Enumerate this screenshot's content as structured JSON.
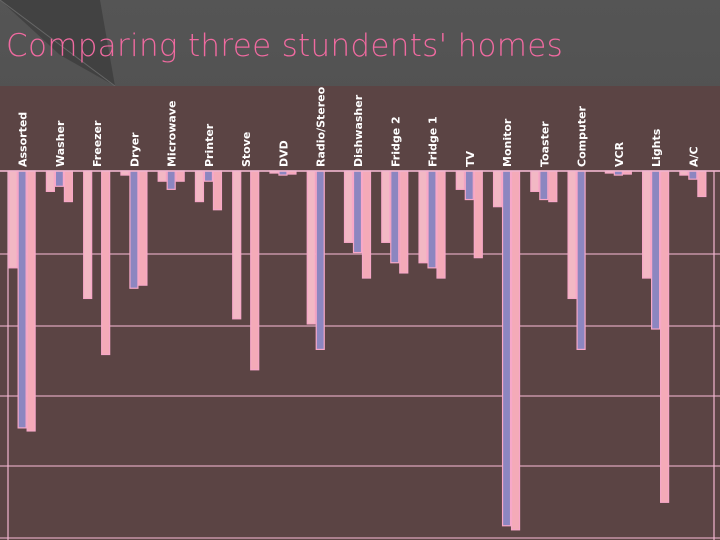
{
  "slide": {
    "title": "Comparing three stundents' homes"
  },
  "colors": {
    "background": "#4a4a4a",
    "plot_bg": "#5b4444",
    "title": "#f06aa0",
    "series_a": "#f2b8c4",
    "series_b": "#8c86c0",
    "series_c": "#f4aab8",
    "outline": "#f7a8c8",
    "gridline": "#f2b6d0",
    "label": "#ffffff"
  },
  "chart_data": {
    "type": "bar",
    "title": "Comparing three stundents' homes",
    "categories": [
      "Assorted",
      "Washer",
      "Freezer",
      "Dryer",
      "Microwave",
      "Printer",
      "Stove",
      "DVD",
      "Radio/Stereo",
      "Dishwasher",
      "Fridge 2",
      "Fridge 1",
      "TV",
      "Monitor",
      "Toaster",
      "Computer",
      "VCR",
      "Lights",
      "A/C"
    ],
    "series": [
      {
        "values": [
          95,
          20,
          125,
          4,
          10,
          30,
          145,
          2,
          150,
          70,
          70,
          90,
          18,
          35,
          20,
          125,
          2,
          105,
          4
        ]
      },
      {
        "values": [
          252,
          15,
          0,
          115,
          18,
          10,
          0,
          4,
          175,
          80,
          90,
          95,
          28,
          348,
          28,
          175,
          4,
          155,
          8
        ]
      },
      {
        "values": [
          255,
          30,
          180,
          112,
          10,
          38,
          195,
          3,
          0,
          105,
          100,
          105,
          85,
          352,
          30,
          0,
          3,
          325,
          25
        ]
      }
    ],
    "ylim": [
      0,
      360
    ],
    "grid": true,
    "legend": "none"
  }
}
